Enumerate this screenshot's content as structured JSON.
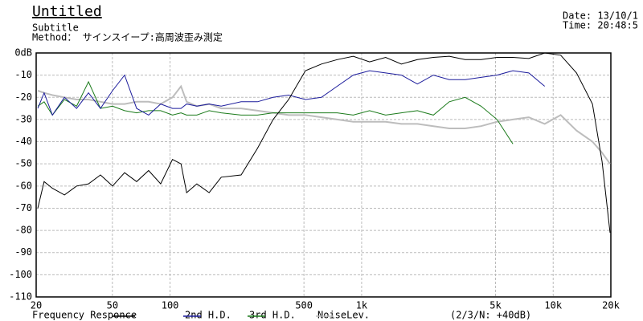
{
  "chart_data": {
    "type": "line",
    "title": "Untitled",
    "subtitle": "Subtitle",
    "method": "Method： サインスイープ:高周波歪み測定",
    "date": "Date: 13/10/1",
    "time": "Time: 20:48:5",
    "legend_note": "(2/3/N: +40dB)",
    "log_x": true,
    "grid": true,
    "x": [
      20.4,
      22,
      24.3,
      28.1,
      32.5,
      37.5,
      43.3,
      50.1,
      57.9,
      66.9,
      77.3,
      89.3,
      103,
      114,
      122,
      138,
      160,
      185,
      235,
      286,
      345,
      416,
      509,
      617,
      745,
      904,
      1100,
      1335,
      1613,
      1955,
      2370,
      2870,
      3470,
      4200,
      5090,
      6160,
      7460,
      9030,
      10940,
      13240,
      16030,
      18000,
      19800
    ],
    "series": [
      {
        "name": "Frequency Responce",
        "color": "#000000",
        "values": [
          -70,
          -58,
          -61,
          -64,
          -60,
          -59,
          -55,
          -60,
          -54,
          -58,
          -53,
          -59,
          -48,
          -50,
          -63,
          -59,
          -63,
          -56,
          -55,
          -43,
          -30,
          -21,
          -8,
          -5,
          -3,
          -1.5,
          -4,
          -2,
          -5,
          -3,
          -2,
          -1.5,
          -3,
          -3,
          -2,
          -2,
          -2.5,
          0,
          -1,
          -9,
          -23,
          -49,
          -81
        ]
      },
      {
        "name": "2nd H.D.",
        "color": "#1c1c9c",
        "values": [
          -25,
          -18,
          -28,
          -20,
          -25,
          -18,
          -25,
          -17,
          -10,
          -25,
          -28,
          -23,
          -25,
          -25,
          -23,
          -24,
          -23,
          -24,
          -22,
          -22,
          -20,
          -19,
          -21,
          -20,
          -15,
          -10,
          -8,
          -9,
          -10,
          -14,
          -10,
          -12,
          -12,
          -11,
          -10,
          -8,
          -9,
          -15,
          null,
          null,
          null,
          null,
          null
        ]
      },
      {
        "name": "3rd H.D.",
        "color": "#1a7a1a",
        "values": [
          -24,
          -22,
          -28,
          -21,
          -24,
          -13,
          -25,
          -24,
          -26,
          -27,
          -26,
          -26,
          -28,
          -27,
          -28,
          -28,
          -26,
          -27,
          -28,
          -28,
          -27,
          -27,
          -27,
          -27,
          -27,
          -28,
          -26,
          -28,
          -27,
          -26,
          -28,
          -22,
          -20,
          -24,
          -30,
          -41,
          null,
          null,
          null,
          null,
          null,
          null,
          null
        ]
      },
      {
        "name": "NoiseLev.",
        "color": "#bdbdbd",
        "values": [
          -17,
          -18,
          -19,
          -20,
          -21,
          -21,
          -22,
          -23,
          -23,
          -22,
          -22,
          -23,
          -20,
          -15,
          -22,
          -24,
          -23,
          -25,
          -25,
          -26,
          -27,
          -28,
          -28,
          -29,
          -30,
          -31,
          -31,
          -31,
          -32,
          -32,
          -33,
          -34,
          -34,
          -33,
          -31,
          -30,
          -29,
          -32,
          -28,
          -35,
          -40,
          -45,
          -50
        ]
      }
    ],
    "xlim": [
      20,
      20000
    ],
    "xticks": [
      20,
      50,
      100,
      500,
      {
        "value": 1000,
        "label": "1k"
      },
      {
        "value": 5000,
        "label": "5k"
      },
      {
        "value": 10000,
        "label": "10k"
      },
      {
        "value": 20000,
        "label": "20k"
      }
    ],
    "ylim": [
      -110,
      0
    ],
    "yticks": [
      {
        "value": 0,
        "label": "0dB"
      },
      -10,
      -20,
      -30,
      -40,
      -50,
      -60,
      -70,
      -80,
      -90,
      -100,
      -110
    ]
  }
}
